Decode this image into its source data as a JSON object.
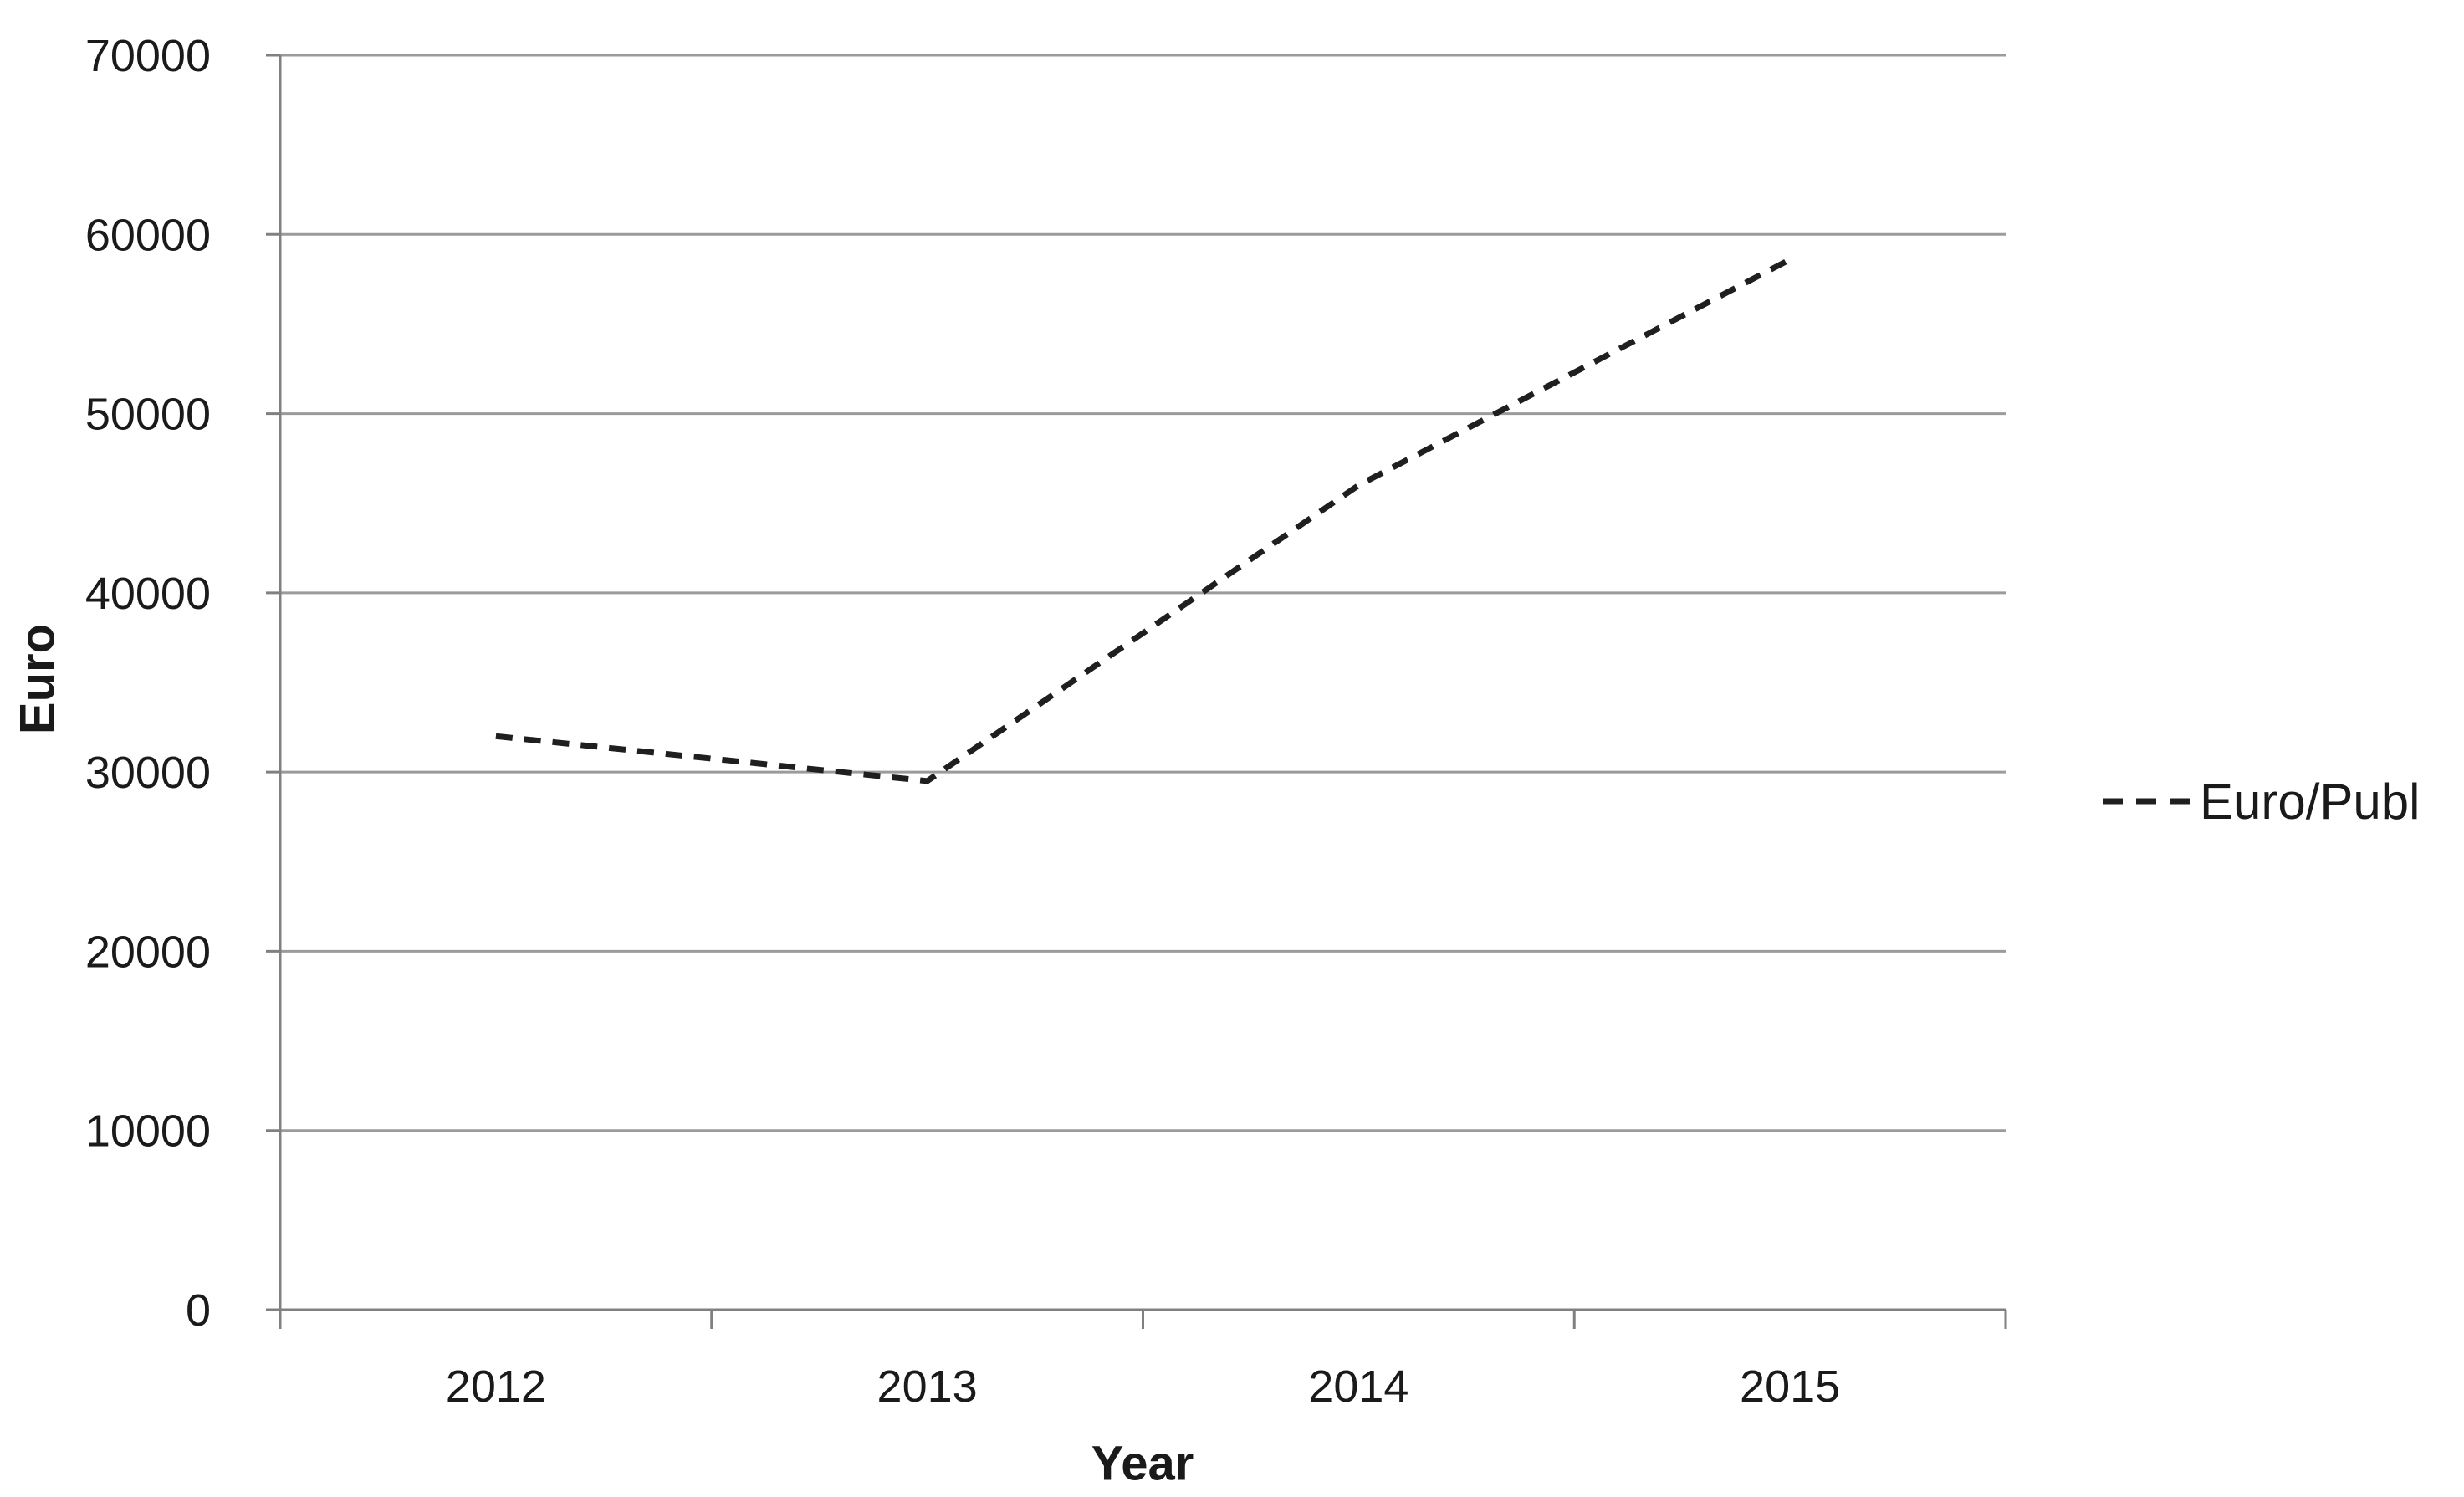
{
  "chart_data": {
    "type": "line",
    "title": "",
    "categories": [
      "2012",
      "2013",
      "2014",
      "2015"
    ],
    "series": [
      {
        "name": "Euro/Publ",
        "values": [
          32000,
          29500,
          46000,
          58600
        ],
        "line_style": "dashed",
        "color": "#1f1f1f"
      }
    ],
    "xlabel": "Year",
    "ylabel": "Euro",
    "ylim": [
      0,
      70000
    ],
    "y_ticks": [
      0,
      10000,
      20000,
      30000,
      40000,
      50000,
      60000,
      70000
    ],
    "grid": "horizontal-gridlines",
    "legend_position": "right-middle",
    "colors": {
      "gridline": "#9b9b9b",
      "axis": "#808080",
      "text": "#1a1a1a",
      "series": "#1f1f1f",
      "background": "#ffffff"
    }
  }
}
